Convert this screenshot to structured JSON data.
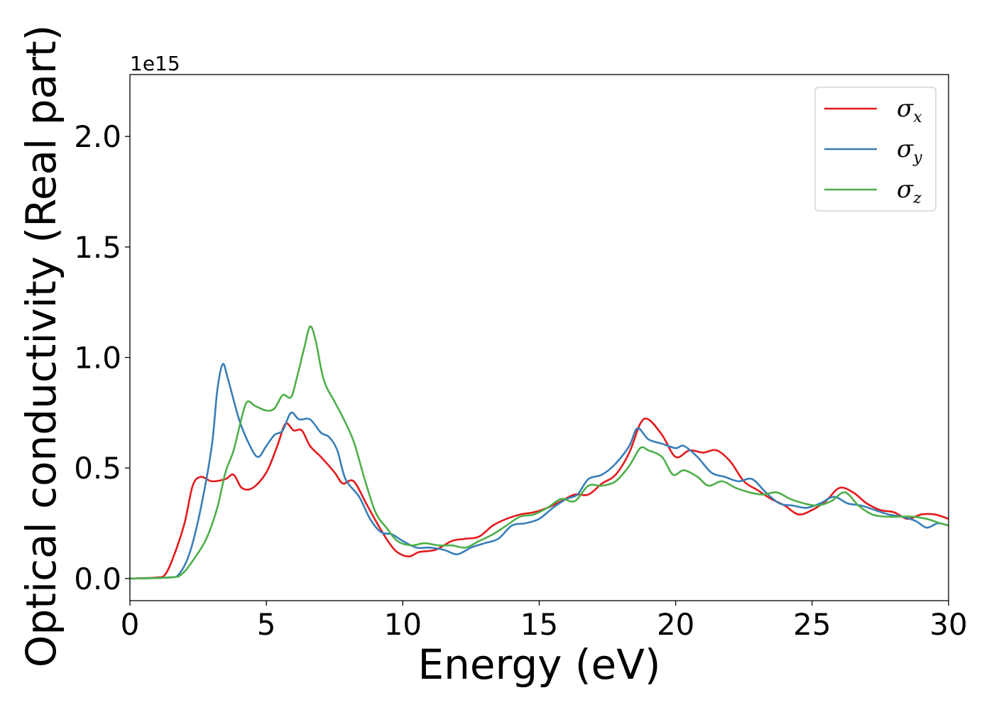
{
  "chart_data": {
    "type": "line",
    "title": "",
    "xlabel": "Energy (eV)",
    "ylabel": "Optical conductivity (Real part)",
    "y_offset_label": "1e15",
    "xlim": [
      0,
      30
    ],
    "ylim": [
      -0.1,
      2.28
    ],
    "x_ticks": [
      0,
      5,
      10,
      15,
      20,
      25,
      30
    ],
    "x_tick_labels": [
      "0",
      "5",
      "10",
      "15",
      "20",
      "25",
      "30"
    ],
    "y_ticks": [
      0.0,
      0.5,
      1.0,
      1.5,
      2.0
    ],
    "y_tick_labels": [
      "0.0",
      "0.5",
      "1.0",
      "1.5",
      "2.0"
    ],
    "grid": false,
    "legend_position": "top-right",
    "series": [
      {
        "name": "σx",
        "symbol": "σ",
        "subscript": "x",
        "color": "#e41a1c",
        "points": [
          [
            0,
            0
          ],
          [
            1,
            0.005
          ],
          [
            1.3,
            0.02
          ],
          [
            1.6,
            0.1
          ],
          [
            2.0,
            0.25
          ],
          [
            2.3,
            0.42
          ],
          [
            2.6,
            0.46
          ],
          [
            3.0,
            0.44
          ],
          [
            3.5,
            0.45
          ],
          [
            3.8,
            0.47
          ],
          [
            4.1,
            0.41
          ],
          [
            4.5,
            0.41
          ],
          [
            5.0,
            0.48
          ],
          [
            5.4,
            0.6
          ],
          [
            5.7,
            0.7
          ],
          [
            6.0,
            0.67
          ],
          [
            6.3,
            0.67
          ],
          [
            6.6,
            0.6
          ],
          [
            7.0,
            0.55
          ],
          [
            7.5,
            0.48
          ],
          [
            7.8,
            0.43
          ],
          [
            8.2,
            0.44
          ],
          [
            8.7,
            0.33
          ],
          [
            9.2,
            0.22
          ],
          [
            9.7,
            0.13
          ],
          [
            10.2,
            0.1
          ],
          [
            10.6,
            0.12
          ],
          [
            11.2,
            0.13
          ],
          [
            11.8,
            0.17
          ],
          [
            12.3,
            0.18
          ],
          [
            12.8,
            0.19
          ],
          [
            13.3,
            0.24
          ],
          [
            13.8,
            0.27
          ],
          [
            14.3,
            0.29
          ],
          [
            14.8,
            0.3
          ],
          [
            15.3,
            0.32
          ],
          [
            15.8,
            0.35
          ],
          [
            16.3,
            0.38
          ],
          [
            16.8,
            0.38
          ],
          [
            17.3,
            0.43
          ],
          [
            17.8,
            0.47
          ],
          [
            18.3,
            0.57
          ],
          [
            18.7,
            0.7
          ],
          [
            19.0,
            0.72
          ],
          [
            19.5,
            0.65
          ],
          [
            20.0,
            0.55
          ],
          [
            20.5,
            0.58
          ],
          [
            21.0,
            0.57
          ],
          [
            21.5,
            0.58
          ],
          [
            22.0,
            0.53
          ],
          [
            22.5,
            0.44
          ],
          [
            23.0,
            0.4
          ],
          [
            23.5,
            0.36
          ],
          [
            24.0,
            0.33
          ],
          [
            24.5,
            0.29
          ],
          [
            25.0,
            0.31
          ],
          [
            25.5,
            0.35
          ],
          [
            26.0,
            0.41
          ],
          [
            26.5,
            0.39
          ],
          [
            27.0,
            0.34
          ],
          [
            27.5,
            0.31
          ],
          [
            28.0,
            0.3
          ],
          [
            28.5,
            0.27
          ],
          [
            29.0,
            0.29
          ],
          [
            29.5,
            0.29
          ],
          [
            30.0,
            0.27
          ]
        ]
      },
      {
        "name": "σy",
        "symbol": "σ",
        "subscript": "y",
        "color": "#377eb8",
        "points": [
          [
            0,
            0
          ],
          [
            1.4,
            0.005
          ],
          [
            1.8,
            0.02
          ],
          [
            2.2,
            0.12
          ],
          [
            2.6,
            0.32
          ],
          [
            3.0,
            0.6
          ],
          [
            3.2,
            0.85
          ],
          [
            3.4,
            0.97
          ],
          [
            3.6,
            0.9
          ],
          [
            4.0,
            0.72
          ],
          [
            4.4,
            0.6
          ],
          [
            4.7,
            0.55
          ],
          [
            5.0,
            0.6
          ],
          [
            5.3,
            0.65
          ],
          [
            5.6,
            0.67
          ],
          [
            5.9,
            0.75
          ],
          [
            6.2,
            0.72
          ],
          [
            6.6,
            0.72
          ],
          [
            7.0,
            0.66
          ],
          [
            7.3,
            0.64
          ],
          [
            7.6,
            0.58
          ],
          [
            7.9,
            0.45
          ],
          [
            8.4,
            0.37
          ],
          [
            8.8,
            0.27
          ],
          [
            9.2,
            0.21
          ],
          [
            9.6,
            0.2
          ],
          [
            10.0,
            0.17
          ],
          [
            10.5,
            0.14
          ],
          [
            11.0,
            0.14
          ],
          [
            11.5,
            0.13
          ],
          [
            12.0,
            0.11
          ],
          [
            12.5,
            0.14
          ],
          [
            13.0,
            0.16
          ],
          [
            13.5,
            0.18
          ],
          [
            14.0,
            0.24
          ],
          [
            14.5,
            0.25
          ],
          [
            15.0,
            0.27
          ],
          [
            15.5,
            0.32
          ],
          [
            16.0,
            0.36
          ],
          [
            16.4,
            0.38
          ],
          [
            16.8,
            0.45
          ],
          [
            17.3,
            0.47
          ],
          [
            17.8,
            0.52
          ],
          [
            18.3,
            0.6
          ],
          [
            18.6,
            0.68
          ],
          [
            19.0,
            0.63
          ],
          [
            19.5,
            0.61
          ],
          [
            20.0,
            0.59
          ],
          [
            20.3,
            0.6
          ],
          [
            20.8,
            0.55
          ],
          [
            21.3,
            0.48
          ],
          [
            21.8,
            0.46
          ],
          [
            22.3,
            0.44
          ],
          [
            22.8,
            0.45
          ],
          [
            23.3,
            0.39
          ],
          [
            23.8,
            0.34
          ],
          [
            24.3,
            0.33
          ],
          [
            24.8,
            0.32
          ],
          [
            25.3,
            0.34
          ],
          [
            25.8,
            0.37
          ],
          [
            26.3,
            0.34
          ],
          [
            26.8,
            0.33
          ],
          [
            27.3,
            0.31
          ],
          [
            27.8,
            0.29
          ],
          [
            28.3,
            0.28
          ],
          [
            28.8,
            0.26
          ],
          [
            29.2,
            0.23
          ],
          [
            29.6,
            0.25
          ],
          [
            30.0,
            0.24
          ]
        ]
      },
      {
        "name": "σz",
        "symbol": "σ",
        "subscript": "z",
        "color": "#4daf4a",
        "points": [
          [
            0,
            0
          ],
          [
            1.5,
            0.005
          ],
          [
            1.9,
            0.02
          ],
          [
            2.3,
            0.08
          ],
          [
            2.8,
            0.18
          ],
          [
            3.2,
            0.32
          ],
          [
            3.5,
            0.48
          ],
          [
            3.8,
            0.58
          ],
          [
            4.1,
            0.73
          ],
          [
            4.3,
            0.8
          ],
          [
            4.6,
            0.78
          ],
          [
            5.0,
            0.76
          ],
          [
            5.3,
            0.77
          ],
          [
            5.6,
            0.83
          ],
          [
            5.9,
            0.82
          ],
          [
            6.1,
            0.9
          ],
          [
            6.4,
            1.05
          ],
          [
            6.6,
            1.14
          ],
          [
            6.8,
            1.08
          ],
          [
            7.1,
            0.9
          ],
          [
            7.5,
            0.8
          ],
          [
            7.8,
            0.73
          ],
          [
            8.2,
            0.62
          ],
          [
            8.6,
            0.45
          ],
          [
            9.0,
            0.3
          ],
          [
            9.4,
            0.23
          ],
          [
            9.8,
            0.17
          ],
          [
            10.3,
            0.15
          ],
          [
            10.8,
            0.16
          ],
          [
            11.3,
            0.15
          ],
          [
            11.8,
            0.15
          ],
          [
            12.3,
            0.14
          ],
          [
            12.8,
            0.17
          ],
          [
            13.3,
            0.2
          ],
          [
            13.8,
            0.24
          ],
          [
            14.3,
            0.28
          ],
          [
            14.8,
            0.29
          ],
          [
            15.3,
            0.32
          ],
          [
            15.8,
            0.36
          ],
          [
            16.3,
            0.35
          ],
          [
            16.8,
            0.42
          ],
          [
            17.3,
            0.42
          ],
          [
            17.8,
            0.44
          ],
          [
            18.3,
            0.51
          ],
          [
            18.7,
            0.59
          ],
          [
            19.0,
            0.58
          ],
          [
            19.5,
            0.55
          ],
          [
            19.9,
            0.47
          ],
          [
            20.3,
            0.49
          ],
          [
            20.8,
            0.46
          ],
          [
            21.2,
            0.42
          ],
          [
            21.7,
            0.44
          ],
          [
            22.2,
            0.41
          ],
          [
            22.7,
            0.39
          ],
          [
            23.2,
            0.38
          ],
          [
            23.7,
            0.39
          ],
          [
            24.2,
            0.36
          ],
          [
            24.7,
            0.34
          ],
          [
            25.2,
            0.33
          ],
          [
            25.7,
            0.35
          ],
          [
            26.2,
            0.39
          ],
          [
            26.7,
            0.33
          ],
          [
            27.2,
            0.29
          ],
          [
            27.7,
            0.28
          ],
          [
            28.2,
            0.28
          ],
          [
            28.7,
            0.28
          ],
          [
            29.2,
            0.27
          ],
          [
            29.7,
            0.25
          ],
          [
            30.0,
            0.24
          ]
        ]
      }
    ]
  }
}
